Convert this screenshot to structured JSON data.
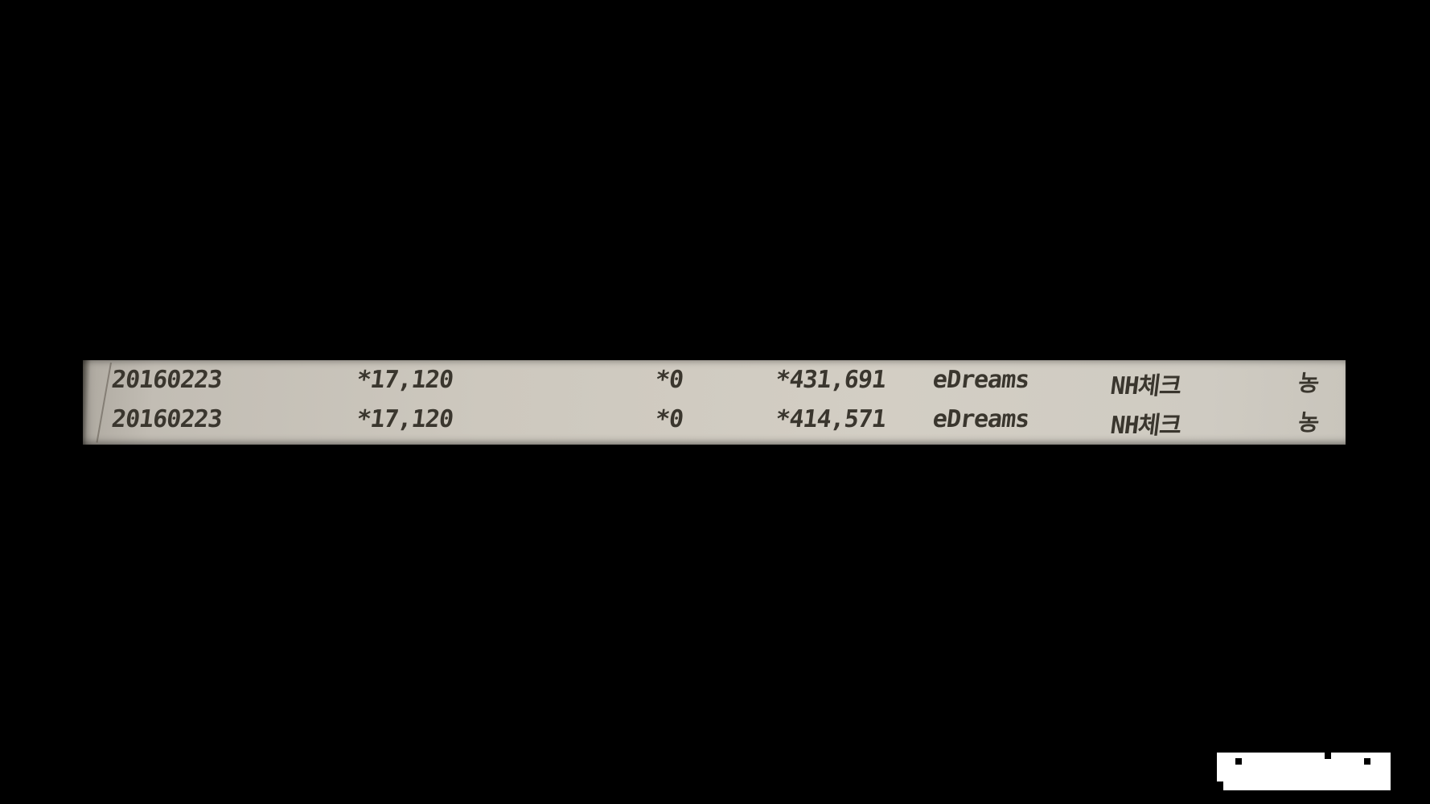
{
  "scene": {
    "background_color": "#000000",
    "description_colors": {
      "paper": "#cdc8be",
      "ink": "#3a362e",
      "sticker": "#ffffff"
    }
  },
  "passbook_strip": {
    "rows": [
      {
        "date": "20160223",
        "withdrawal": "*17,120",
        "deposit": "*0",
        "balance": "*431,691",
        "merchant": "eDreams",
        "card_type": "NH체크",
        "bank_mark": "농"
      },
      {
        "date": "20160223",
        "withdrawal": "*17,120",
        "deposit": "*0",
        "balance": "*414,571",
        "merchant": "eDreams",
        "card_type": "NH체크",
        "bank_mark": "농"
      }
    ]
  }
}
